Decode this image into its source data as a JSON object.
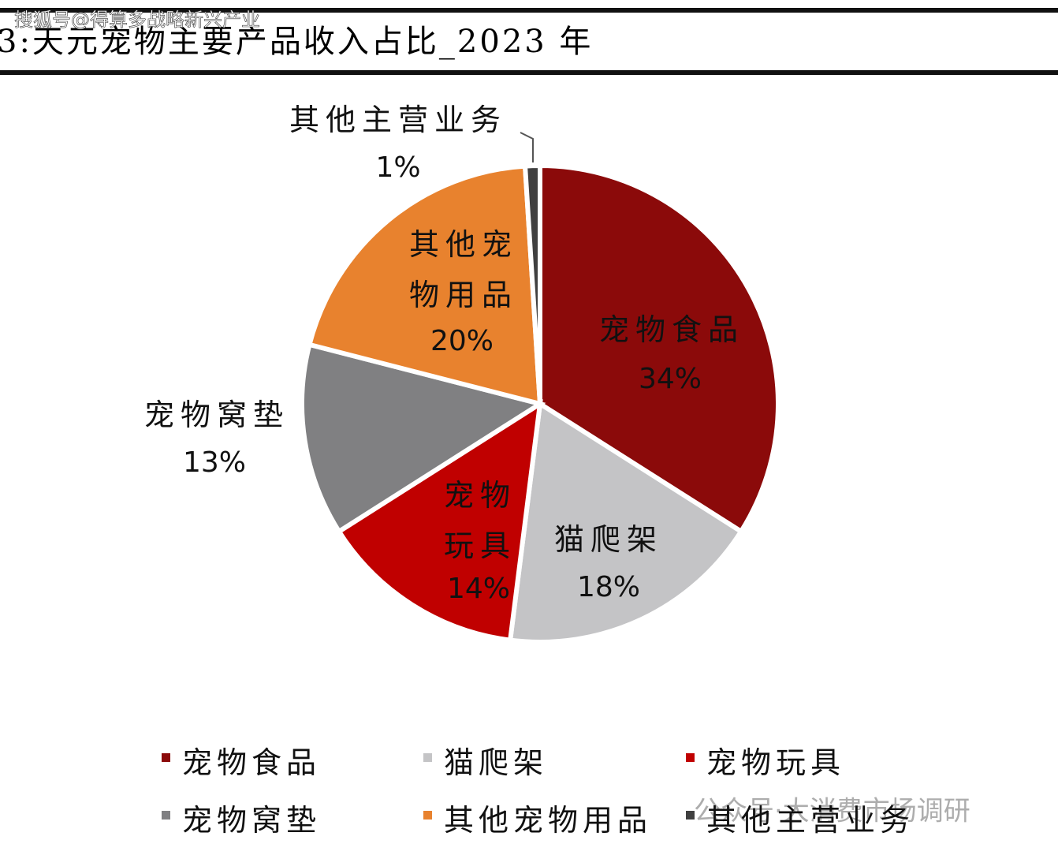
{
  "watermarks": [
    "搜狐号@得算多战略新兴产业",
    "公众号·大消费市场调研"
  ],
  "chart_data": {
    "type": "pie",
    "title": "3:天元宠物主要产品收入占比_2023 年",
    "categories": [
      "宠物食品",
      "猫爬架",
      "宠物玩具",
      "宠物窝垫",
      "其他宠物用品",
      "其他主营业务"
    ],
    "values": [
      34,
      18,
      14,
      13,
      20,
      1
    ],
    "value_labels": [
      "34%",
      "18%",
      "14%",
      "13%",
      "20%",
      "1%"
    ],
    "colors": [
      "#8b0a0a",
      "#c4c4c6",
      "#c00000",
      "#808082",
      "#e8822e",
      "#404040"
    ]
  }
}
